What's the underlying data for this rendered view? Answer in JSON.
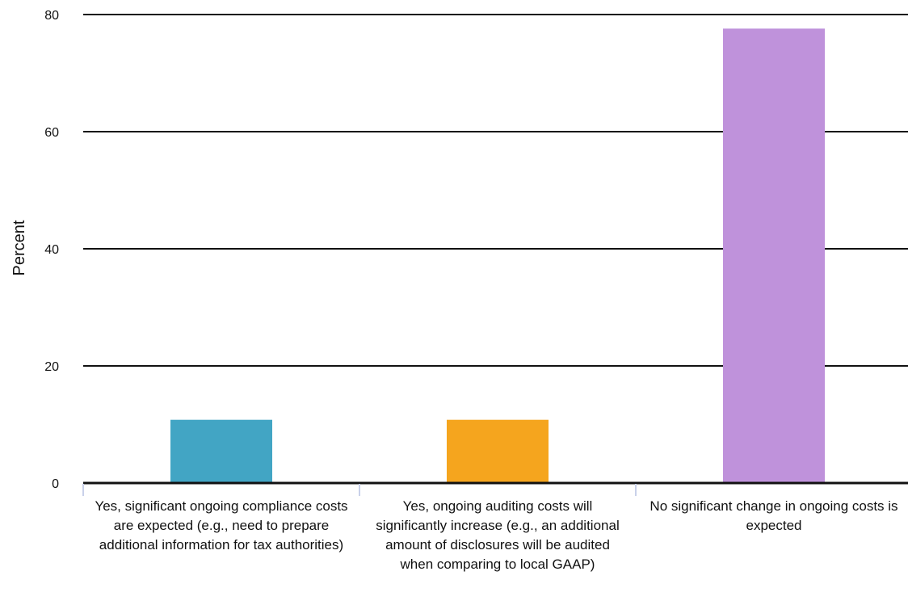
{
  "chart_data": {
    "type": "bar",
    "ylabel": "Percent",
    "ylim": [
      0,
      80
    ],
    "yticks": [
      0,
      20,
      40,
      60,
      80
    ],
    "grid": true,
    "categories": [
      "Yes, significant ongoing compliance costs are expected (e.g., need to prepare additional information for tax authorities)",
      "Yes, ongoing auditing costs will significantly increase (e.g., an additional amount of disclosures will be audited when comparing to local GAAP)",
      "No significant change in ongoing costs is expected"
    ],
    "values": [
      10.8,
      10.8,
      77.6
    ],
    "colors": [
      "#42a5c4",
      "#f5a51e",
      "#bf92db"
    ]
  }
}
